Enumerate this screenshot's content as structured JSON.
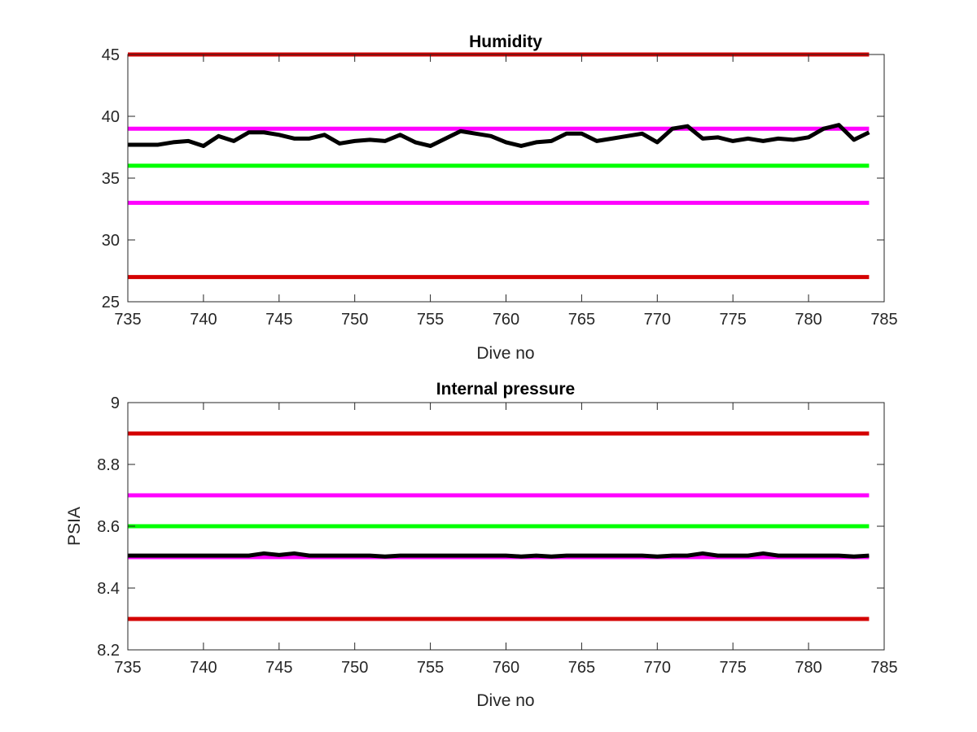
{
  "chart_data": [
    {
      "type": "line",
      "title": "Humidity",
      "xlabel": "Dive no",
      "ylabel": "",
      "xlim": [
        735,
        785
      ],
      "ylim": [
        25,
        45
      ],
      "xticks": [
        735,
        740,
        745,
        750,
        755,
        760,
        765,
        770,
        775,
        780,
        785
      ],
      "yticks": [
        25,
        30,
        35,
        40,
        45
      ],
      "grid": false,
      "thresholds": [
        {
          "value": 45,
          "color": "#d40000",
          "x": [
            735,
            784
          ]
        },
        {
          "value": 39,
          "color": "#ff00ff",
          "x": [
            735,
            784
          ]
        },
        {
          "value": 36,
          "color": "#00ff00",
          "x": [
            735,
            784
          ]
        },
        {
          "value": 33,
          "color": "#ff00ff",
          "x": [
            735,
            784
          ]
        },
        {
          "value": 27,
          "color": "#d40000",
          "x": [
            735,
            784
          ]
        }
      ],
      "series": [
        {
          "color": "#000000",
          "x": [
            735,
            736,
            737,
            738,
            739,
            740,
            741,
            742,
            743,
            744,
            745,
            746,
            747,
            748,
            749,
            750,
            751,
            752,
            753,
            754,
            755,
            756,
            757,
            758,
            759,
            760,
            761,
            762,
            763,
            764,
            765,
            766,
            767,
            768,
            769,
            770,
            771,
            772,
            773,
            774,
            775,
            776,
            777,
            778,
            779,
            780,
            781,
            782,
            783,
            784
          ],
          "y": [
            37.7,
            37.7,
            37.7,
            37.9,
            38.0,
            37.6,
            38.4,
            38.0,
            38.7,
            38.7,
            38.5,
            38.2,
            38.2,
            38.5,
            37.8,
            38.0,
            38.1,
            38.0,
            38.5,
            37.9,
            37.6,
            38.2,
            38.8,
            38.6,
            38.4,
            37.9,
            37.6,
            37.9,
            38.0,
            38.6,
            38.6,
            38.0,
            38.2,
            38.4,
            38.6,
            37.9,
            39.0,
            39.2,
            38.2,
            38.3,
            38.0,
            38.2,
            38.0,
            38.2,
            38.1,
            38.3,
            39.0,
            39.3,
            38.1,
            38.7
          ]
        }
      ]
    },
    {
      "type": "line",
      "title": "Internal pressure",
      "xlabel": "Dive no",
      "ylabel": "PSIA",
      "xlim": [
        735,
        785
      ],
      "ylim": [
        8.2,
        9
      ],
      "xticks": [
        735,
        740,
        745,
        750,
        755,
        760,
        765,
        770,
        775,
        780,
        785
      ],
      "yticks": [
        8.2,
        8.4,
        8.6,
        8.8,
        9
      ],
      "grid": false,
      "thresholds": [
        {
          "value": 8.9,
          "color": "#d40000",
          "x": [
            735,
            784
          ]
        },
        {
          "value": 8.7,
          "color": "#ff00ff",
          "x": [
            735,
            784
          ]
        },
        {
          "value": 8.6,
          "color": "#00ff00",
          "x": [
            735,
            784
          ]
        },
        {
          "value": 8.3,
          "color": "#d40000",
          "x": [
            735,
            784
          ]
        },
        {
          "value": 8.5,
          "color": "#ff00ff",
          "x": [
            735,
            784
          ]
        }
      ],
      "series": [
        {
          "color": "#000000",
          "x": [
            735,
            736,
            737,
            738,
            739,
            740,
            741,
            742,
            743,
            744,
            745,
            746,
            747,
            748,
            749,
            750,
            751,
            752,
            753,
            754,
            755,
            756,
            757,
            758,
            759,
            760,
            761,
            762,
            763,
            764,
            765,
            766,
            767,
            768,
            769,
            770,
            771,
            772,
            773,
            774,
            775,
            776,
            777,
            778,
            779,
            780,
            781,
            782,
            783,
            784
          ],
          "y": [
            8.505,
            8.505,
            8.505,
            8.505,
            8.505,
            8.505,
            8.505,
            8.505,
            8.505,
            8.512,
            8.507,
            8.512,
            8.505,
            8.505,
            8.505,
            8.505,
            8.505,
            8.502,
            8.505,
            8.505,
            8.505,
            8.505,
            8.505,
            8.505,
            8.505,
            8.505,
            8.502,
            8.505,
            8.502,
            8.505,
            8.505,
            8.505,
            8.505,
            8.505,
            8.505,
            8.502,
            8.505,
            8.505,
            8.512,
            8.505,
            8.505,
            8.505,
            8.512,
            8.505,
            8.505,
            8.505,
            8.505,
            8.505,
            8.502,
            8.505
          ]
        }
      ]
    }
  ]
}
